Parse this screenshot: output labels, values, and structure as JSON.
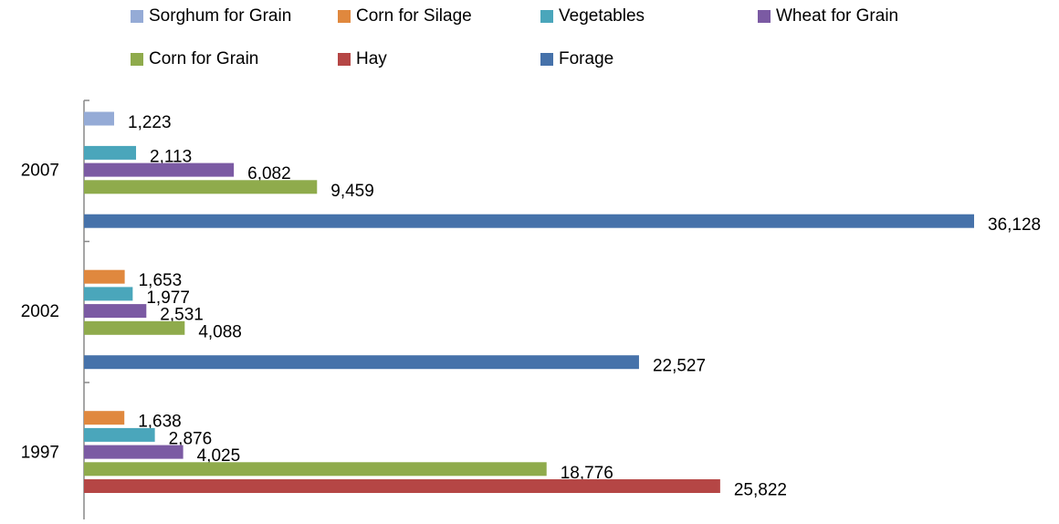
{
  "chart_data": {
    "type": "hbar",
    "categories": [
      "2007",
      "2002",
      "1997"
    ],
    "series": [
      {
        "name": "Sorghum for Grain",
        "color": "#95abd6",
        "values": [
          1223,
          null,
          null
        ],
        "value_labels": [
          "1,223",
          null,
          null
        ]
      },
      {
        "name": "Corn for Silage",
        "color": "#e0883e",
        "values": [
          null,
          1653,
          1638
        ],
        "value_labels": [
          null,
          "1,653",
          "1,638"
        ]
      },
      {
        "name": "Vegetables",
        "color": "#4aa6bb",
        "values": [
          2113,
          1977,
          2876
        ],
        "value_labels": [
          "2,113",
          "1,977",
          "2,876"
        ]
      },
      {
        "name": "Wheat for Grain",
        "color": "#7b5aa3",
        "values": [
          6082,
          2531,
          4025
        ],
        "value_labels": [
          "6,082",
          "2,531",
          "4,025"
        ]
      },
      {
        "name": "Corn for Grain",
        "color": "#8fab4c",
        "values": [
          9459,
          4088,
          18776
        ],
        "value_labels": [
          "9,459",
          "4,088",
          "18,776"
        ]
      },
      {
        "name": "Hay",
        "color": "#b54645",
        "values": [
          null,
          null,
          25822
        ],
        "value_labels": [
          null,
          null,
          "25,822"
        ]
      },
      {
        "name": "Forage",
        "color": "#4672aa",
        "values": [
          36128,
          22527,
          null
        ],
        "value_labels": [
          "36,128",
          "22,527",
          null
        ]
      }
    ]
  }
}
